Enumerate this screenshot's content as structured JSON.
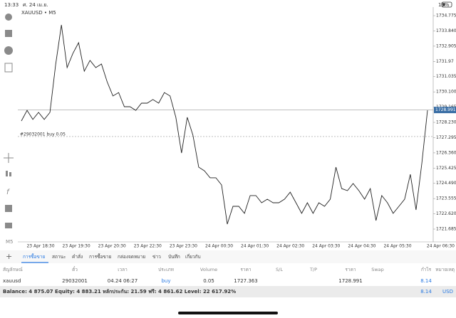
{
  "status_bar": {
    "time": "13:33",
    "date": "ศ. 24 เม.ย.",
    "battery": "19%"
  },
  "chart": {
    "type": "line",
    "symbol": "XAUUSD • M5",
    "color": "#222222",
    "values": [
      1728.32,
      1728.97,
      1728.41,
      1728.84,
      1728.41,
      1728.84,
      1731.81,
      1734.21,
      1731.59,
      1732.46,
      1733.12,
      1731.37,
      1732.03,
      1731.59,
      1731.81,
      1730.72,
      1729.85,
      1730.06,
      1729.19,
      1729.19,
      1728.97,
      1729.41,
      1729.41,
      1729.63,
      1729.41,
      1730.06,
      1729.85,
      1728.54,
      1726.35,
      1728.54,
      1727.44,
      1725.48,
      1725.26,
      1724.83,
      1724.83,
      1724.39,
      1721.99,
      1723.08,
      1723.08,
      1722.65,
      1723.74,
      1723.74,
      1723.3,
      1723.52,
      1723.3,
      1723.3,
      1723.52,
      1723.95,
      1723.3,
      1722.65,
      1723.3,
      1722.65,
      1723.3,
      1723.08,
      1723.52,
      1725.48,
      1724.17,
      1724.04,
      1724.48,
      1724.04,
      1723.52,
      1724.17,
      1722.21,
      1723.74,
      1723.3,
      1722.65,
      1723.08,
      1723.52,
      1725.04,
      1722.86,
      1725.7,
      1728.97
    ],
    "ylim": [
      1720.9,
      1735.3
    ],
    "yticks": [
      {
        "value": 1734.775,
        "label": "1734.775"
      },
      {
        "value": 1733.84,
        "label": "1733.840"
      },
      1732.905,
      1731.97,
      1731.035,
      {
        "value": 1730.1,
        "label": "1730.100"
      },
      1729.165,
      {
        "value": 1728.23,
        "label": "1728.230"
      },
      1727.295,
      {
        "value": 1726.36,
        "label": "1726.360"
      },
      1725.425,
      {
        "value": 1724.49,
        "label": "1724.490"
      },
      1723.555,
      {
        "value": 1722.62,
        "label": "1722.620"
      },
      1721.685
    ],
    "x_labels": [
      "23 Apr 18:30",
      "23 Apr 19:30",
      "23 Apr 20:30",
      "23 Apr 22:30",
      "23 Apr 23:30",
      "24 Apr 00:30",
      "24 Apr 01:30",
      "24 Apr 02:30",
      "24 Apr 03:30",
      "24 Apr 04:30",
      "24 Apr 05:30",
      "24 Apr 06:30"
    ],
    "current_price": 1728.991,
    "position_label": "#29032001 buy 0.05",
    "position_price": 1727.363
  },
  "tabs": [
    "การซื้อขาย",
    "สถานะ",
    "คำสั่ง",
    "การซื้อขาย",
    "กล่องจดหมาย",
    "ข่าว",
    "บันทึก",
    "เกี่ยวกับ"
  ],
  "table": {
    "headers": [
      "สัญลักษณ์",
      "ตั๋ว",
      "เวลา",
      "ประเภท",
      "Volume",
      "ราคา",
      "S/L",
      "T/P",
      "ราคา",
      "Swap",
      "กำไร",
      "หมายเหตุ"
    ],
    "rows": [
      {
        "symbol": "xauusd",
        "ticket": "29032001",
        "time": "04.24 06:27",
        "type": "buy",
        "volume": "0.05",
        "open_price": "1727.363",
        "price": "1728.991",
        "profit": "8.14"
      }
    ]
  },
  "balance": {
    "text": "Balance: 4 875.07 Equity: 4 883.21 หลักประกัน: 21.59 ฟรี: 4 861.62 Level: 22 617.92%",
    "profit": "8.14",
    "currency": "USD"
  }
}
